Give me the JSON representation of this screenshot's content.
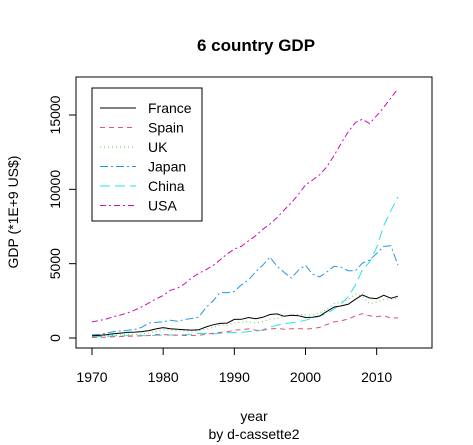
{
  "chart_data": {
    "type": "line",
    "title": "6 country GDP",
    "xlabel": "year",
    "subtitle": "by d-cassette2",
    "ylabel": "GDP (*1E+9 US$)",
    "xlim": [
      1970,
      2013
    ],
    "ylim": [
      0,
      16800
    ],
    "x_ticks": [
      "1970",
      "1980",
      "1990",
      "2000",
      "2010"
    ],
    "y_ticks": [
      "0",
      "5000",
      "10000",
      "15000"
    ],
    "legend_position": "top-left",
    "x": [
      1970,
      1971,
      1972,
      1973,
      1974,
      1975,
      1976,
      1977,
      1978,
      1979,
      1980,
      1981,
      1982,
      1983,
      1984,
      1985,
      1986,
      1987,
      1988,
      1989,
      1990,
      1991,
      1992,
      1993,
      1994,
      1995,
      1996,
      1997,
      1998,
      1999,
      2000,
      2001,
      2002,
      2003,
      2004,
      2005,
      2006,
      2007,
      2008,
      2009,
      2010,
      2011,
      2012,
      2013
    ],
    "series": [
      {
        "name": "France",
        "color": "#000000",
        "dash": "",
        "values": [
          150,
          175,
          225,
          290,
          330,
          380,
          400,
          430,
          500,
          610,
          700,
          620,
          590,
          560,
          530,
          550,
          740,
          890,
          980,
          1000,
          1250,
          1260,
          1380,
          1300,
          1390,
          1580,
          1620,
          1460,
          1530,
          1500,
          1380,
          1390,
          1480,
          1790,
          2080,
          2160,
          2270,
          2600,
          2900,
          2690,
          2650,
          2870,
          2680,
          2810
        ]
      },
      {
        "name": "Spain",
        "color": "#df536b",
        "dash": "5,4",
        "values": [
          40,
          45,
          55,
          80,
          100,
          120,
          130,
          140,
          170,
          230,
          230,
          200,
          190,
          170,
          170,
          180,
          250,
          320,
          380,
          420,
          530,
          560,
          620,
          520,
          520,
          610,
          640,
          590,
          620,
          630,
          600,
          630,
          710,
          910,
          1080,
          1160,
          1280,
          1480,
          1640,
          1490,
          1430,
          1490,
          1340,
          1360
        ]
      },
      {
        "name": "UK",
        "color": "#61d04f",
        "dash": "1,3",
        "values": [
          130,
          150,
          170,
          200,
          210,
          240,
          230,
          260,
          330,
          450,
          560,
          530,
          500,
          480,
          460,
          490,
          580,
          720,
          870,
          860,
          1010,
          1070,
          1110,
          1000,
          1100,
          1270,
          1320,
          1480,
          1560,
          1590,
          1550,
          1540,
          1680,
          1930,
          2300,
          2400,
          2580,
          2950,
          2810,
          2310,
          2410,
          2590,
          2620,
          2680
        ]
      },
      {
        "name": "Japan",
        "color": "#2297e6",
        "dash": "8,3,2,3",
        "values": [
          210,
          240,
          320,
          430,
          470,
          520,
          580,
          720,
          1010,
          1050,
          1090,
          1200,
          1120,
          1240,
          1310,
          1400,
          2050,
          2490,
          3060,
          3050,
          3130,
          3580,
          3910,
          4450,
          4900,
          5450,
          4830,
          4420,
          4030,
          4560,
          4890,
          4300,
          4110,
          4440,
          4820,
          4760,
          4530,
          4520,
          5040,
          5230,
          5700,
          6160,
          6200,
          4900
        ]
      },
      {
        "name": "China",
        "color": "#28e2e5",
        "dash": "10,5",
        "values": [
          90,
          100,
          110,
          140,
          140,
          160,
          150,
          170,
          150,
          180,
          190,
          200,
          200,
          230,
          260,
          310,
          300,
          270,
          310,
          350,
          360,
          380,
          430,
          440,
          560,
          730,
          860,
          960,
          1030,
          1090,
          1200,
          1340,
          1470,
          1660,
          1960,
          2310,
          2770,
          3550,
          4590,
          5100,
          6100,
          7570,
          8560,
          9490
        ]
      },
      {
        "name": "USA",
        "color": "#cd0bbc",
        "dash": "6,3,2,3",
        "values": [
          1080,
          1170,
          1280,
          1430,
          1550,
          1690,
          1880,
          2090,
          2360,
          2630,
          2860,
          3210,
          3350,
          3640,
          4040,
          4350,
          4590,
          4870,
          5250,
          5660,
          5980,
          6170,
          6540,
          6880,
          7310,
          7660,
          8100,
          8610,
          9090,
          9660,
          10290,
          10630,
          10980,
          11510,
          12270,
          13090,
          13860,
          14480,
          14720,
          14420,
          14960,
          15520,
          16160,
          16770
        ]
      }
    ]
  }
}
